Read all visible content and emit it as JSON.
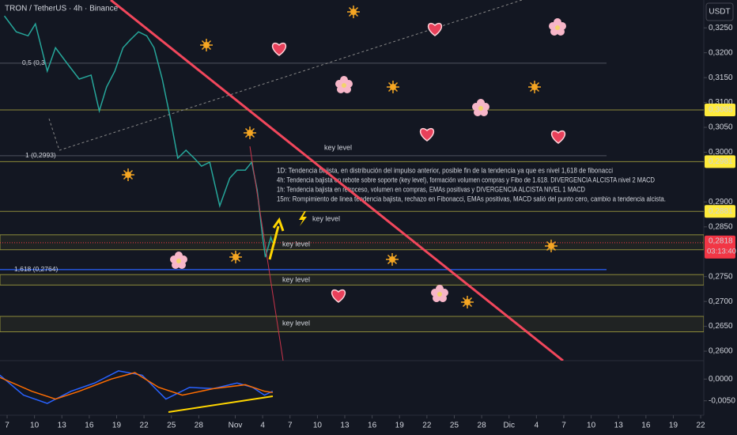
{
  "chart_data": [
    {
      "type": "line",
      "title": "TRON / TetherUS · 4h · Binance",
      "currency": "USDT",
      "xlim": [
        -0.78,
        76.34
      ],
      "xticks": [
        {
          "value": 0,
          "label": "7"
        },
        {
          "value": 3,
          "label": "10"
        },
        {
          "value": 6,
          "label": "13"
        },
        {
          "value": 9,
          "label": "16"
        },
        {
          "value": 12,
          "label": "19"
        },
        {
          "value": 15,
          "label": "22"
        },
        {
          "value": 18,
          "label": "25"
        },
        {
          "value": 21,
          "label": "28"
        },
        {
          "value": 25,
          "label": "Nov"
        },
        {
          "value": 28,
          "label": "4"
        },
        {
          "value": 31,
          "label": "7"
        },
        {
          "value": 34,
          "label": "10"
        },
        {
          "value": 37,
          "label": "13"
        },
        {
          "value": 40,
          "label": "16"
        },
        {
          "value": 43,
          "label": "19"
        },
        {
          "value": 46,
          "label": "22"
        },
        {
          "value": 49,
          "label": "25"
        },
        {
          "value": 52,
          "label": "28"
        },
        {
          "value": 55,
          "label": "Dic"
        },
        {
          "value": 58,
          "label": "4"
        },
        {
          "value": 61,
          "label": "7"
        },
        {
          "value": 64,
          "label": "10"
        },
        {
          "value": 67,
          "label": "13"
        },
        {
          "value": 70,
          "label": "16"
        },
        {
          "value": 73,
          "label": "19"
        },
        {
          "value": 76,
          "label": "22"
        }
      ],
      "ylim": [
        0.2581,
        0.3306
      ],
      "yticks": [
        {
          "value": 0.325,
          "label": "0,3250"
        },
        {
          "value": 0.32,
          "label": "0,3200"
        },
        {
          "value": 0.315,
          "label": "0,3150"
        },
        {
          "value": 0.31,
          "label": "0,3100"
        },
        {
          "value": 0.305,
          "label": "0,3050"
        },
        {
          "value": 0.3,
          "label": "0,3000"
        },
        {
          "value": 0.29,
          "label": "0,2900"
        },
        {
          "value": 0.285,
          "label": "0,2850"
        },
        {
          "value": 0.275,
          "label": "0,2750"
        },
        {
          "value": 0.27,
          "label": "0,2700"
        },
        {
          "value": 0.265,
          "label": "0,2650"
        },
        {
          "value": 0.26,
          "label": "0,2600"
        }
      ],
      "series": [
        {
          "color": "#26a69a",
          "x": [
            -0.3,
            1.0,
            2.3,
            3.1,
            4.4,
            5.3,
            6.6,
            7.9,
            9.2,
            10.1,
            10.9,
            11.8,
            12.7,
            13.5,
            14.4,
            15.3,
            16.1,
            17.0,
            17.9,
            18.7,
            19.6,
            20.5,
            21.3,
            22.2,
            23.3,
            24.4,
            25.2,
            26.1,
            26.8,
            27.4,
            28.0,
            28.3,
            28.9,
            29.1
          ],
          "values": [
            0.3274,
            0.3242,
            0.3234,
            0.3258,
            0.3163,
            0.321,
            0.3178,
            0.3147,
            0.3155,
            0.3083,
            0.3131,
            0.3163,
            0.321,
            0.3226,
            0.3242,
            0.3234,
            0.321,
            0.3147,
            0.3067,
            0.2988,
            0.3004,
            0.2988,
            0.2972,
            0.298,
            0.2892,
            0.2948,
            0.2964,
            0.2964,
            0.298,
            0.2924,
            0.2829,
            0.2789,
            0.2829,
            0.2818
          ]
        }
      ],
      "levels": [
        {
          "value": 0.3179,
          "label": "0,5 (0,3"
        },
        {
          "value": 0.2993,
          "label": "1 (0,2993)"
        },
        {
          "value": 0.2764,
          "label": "1,618 (0,2764)"
        }
      ],
      "price_tags": [
        {
          "value": 0.3085,
          "label": "0,3085"
        },
        {
          "value": 0.2981,
          "label": "0,2981"
        },
        {
          "value": 0.2881,
          "label": "0,2881"
        }
      ],
      "current": {
        "value": 0.2818,
        "label": "0,2818",
        "countdown": "03:13:40"
      },
      "zones": [
        {
          "low": 0.2804,
          "high": 0.2834
        },
        {
          "low": 0.2733,
          "high": 0.2754
        },
        {
          "low": 0.2639,
          "high": 0.267
        }
      ],
      "annotations": [
        "key level",
        "key level",
        "key level",
        "key level",
        "key level"
      ],
      "notes": [
        "1D: Tendencia bajista, en distribución del impulso anterior, posible fin de la tendencia ya que es nivel 1,618 de fibonacci",
        "4h: Tendencia bajista en rebote sobre soporte (key level), formación volumen compras y Fibo de 1.618. DIVERGENCIA  ALCISTA nivel 2 MACD",
        "1h: Tendencia bajista en retroceso, volumen en compras, EMAs positivas y DIVERGENCIA ALCISTA NIVEL 1 MACD",
        "15m: Rompimiento de linea tendencia bajista, rechazo en Fibonacci, EMAs positivas, MACD salió del punto cero, cambio a tendencia alcista."
      ]
    },
    {
      "type": "line",
      "xlim": [
        -0.78,
        76.34
      ],
      "ylim": [
        -0.00833,
        0.00407
      ],
      "yticks": [
        {
          "value": 0,
          "label": "0,0000"
        },
        {
          "value": -0.005,
          "label": "-0,0050"
        }
      ],
      "series": [
        {
          "color": "#2962ff",
          "x": [
            -0.8,
            1.8,
            4.4,
            7.0,
            9.6,
            12.2,
            14.8,
            17.4,
            20.0,
            22.6,
            25.2,
            26.9,
            28.2,
            29.1
          ],
          "values": [
            0.0009,
            -0.0037,
            -0.0056,
            -0.0028,
            -0.0009,
            0.0019,
            0.0009,
            -0.0046,
            -0.0019,
            -0.0022,
            -0.0009,
            -0.0019,
            -0.0037,
            -0.0028
          ]
        },
        {
          "color": "#ff6d00",
          "x": [
            -0.8,
            2.7,
            5.3,
            7.9,
            11.4,
            14.0,
            16.6,
            19.2,
            22.6,
            26.1,
            28.2,
            29.1
          ],
          "values": [
            0.0004,
            -0.0028,
            -0.0046,
            -0.0028,
            0,
            0.0015,
            -0.0019,
            -0.0037,
            -0.0022,
            -0.0013,
            -0.0028,
            -0.0031
          ]
        }
      ]
    }
  ]
}
